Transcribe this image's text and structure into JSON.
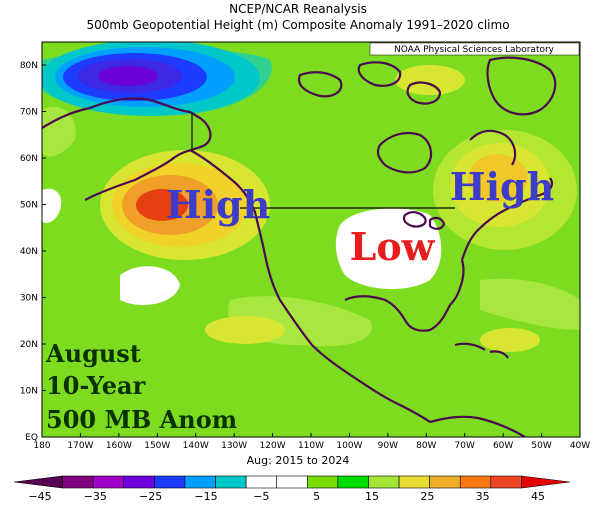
{
  "header": {
    "title_line1": "NCEP/NCAR Reanalysis",
    "title_line2": "500mb Geopotential Height (m) Composite Anomaly 1991–2020 climo"
  },
  "credit": "NOAA Physical Sciences Laboratory",
  "subtitle": "Aug: 2015 to 2024",
  "annotations": {
    "high_west": "High",
    "high_east": "High",
    "low": "Low",
    "note_line1": "August",
    "note_line2": "10-Year",
    "note_line3": "500 MB Anom"
  },
  "axes": {
    "lat_labels": [
      "80N",
      "70N",
      "60N",
      "50N",
      "40N",
      "30N",
      "20N",
      "10N",
      "EQ"
    ],
    "lon_labels": [
      "180",
      "170W",
      "160W",
      "150W",
      "140W",
      "130W",
      "120W",
      "110W",
      "100W",
      "90W",
      "80W",
      "70W",
      "60W",
      "50W",
      "40W"
    ]
  },
  "colorbar": {
    "labels": [
      "−45",
      "−35",
      "−25",
      "−15",
      "−5",
      "5",
      "15",
      "25",
      "35",
      "45"
    ],
    "colors": [
      "#5a0052",
      "#80007e",
      "#a000c8",
      "#6e00dc",
      "#1e3cff",
      "#00a0ff",
      "#00c8c8",
      "#ffffff",
      "#ffffff",
      "#78dc00",
      "#00dc00",
      "#a0e632",
      "#e6dc32",
      "#f0af28",
      "#fa7814",
      "#f04628",
      "#e60000"
    ]
  },
  "colors": {
    "field_base": "#7ddc1f",
    "high_anom_core": "#e64010",
    "low_anom_core": "#2020c8",
    "text_high": "#3c3cc8",
    "text_low": "#e61e1e",
    "note_text": "#0a3200"
  }
}
